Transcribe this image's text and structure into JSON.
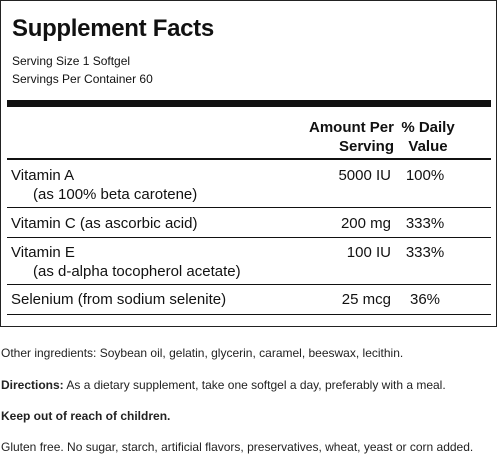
{
  "title": "Supplement Facts",
  "serving_size": "Serving Size 1 Softgel",
  "servings_per_container": "Servings Per Container 60",
  "header": {
    "amount_line1": "Amount Per",
    "amount_line2": "Serving",
    "dv_line1": "% Daily",
    "dv_line2": "Value"
  },
  "rows": [
    {
      "name": "Vitamin A",
      "sub": "(as 100% beta carotene)",
      "amount": "5000 IU",
      "dv": "100%"
    },
    {
      "name": "Vitamin C (as ascorbic acid)",
      "sub": "",
      "amount": "200 mg",
      "dv": "333%"
    },
    {
      "name": "Vitamin E",
      "sub": "(as d-alpha tocopherol acetate)",
      "amount": "100 IU",
      "dv": "333%"
    },
    {
      "name": "Selenium (from sodium selenite)",
      "sub": "",
      "amount": "25 mcg",
      "dv": "36%"
    }
  ],
  "other_ingredients": "Other ingredients: Soybean oil, gelatin, glycerin, caramel, beeswax, lecithin.",
  "directions_label": "Directions:",
  "directions_text": " As a dietary supplement, take one softgel a day, preferably with a meal.",
  "warning": "Keep out of reach of children.",
  "allergen_note": "Gluten free. No sugar, starch, artificial flavors, preservatives, wheat, yeast or corn added."
}
